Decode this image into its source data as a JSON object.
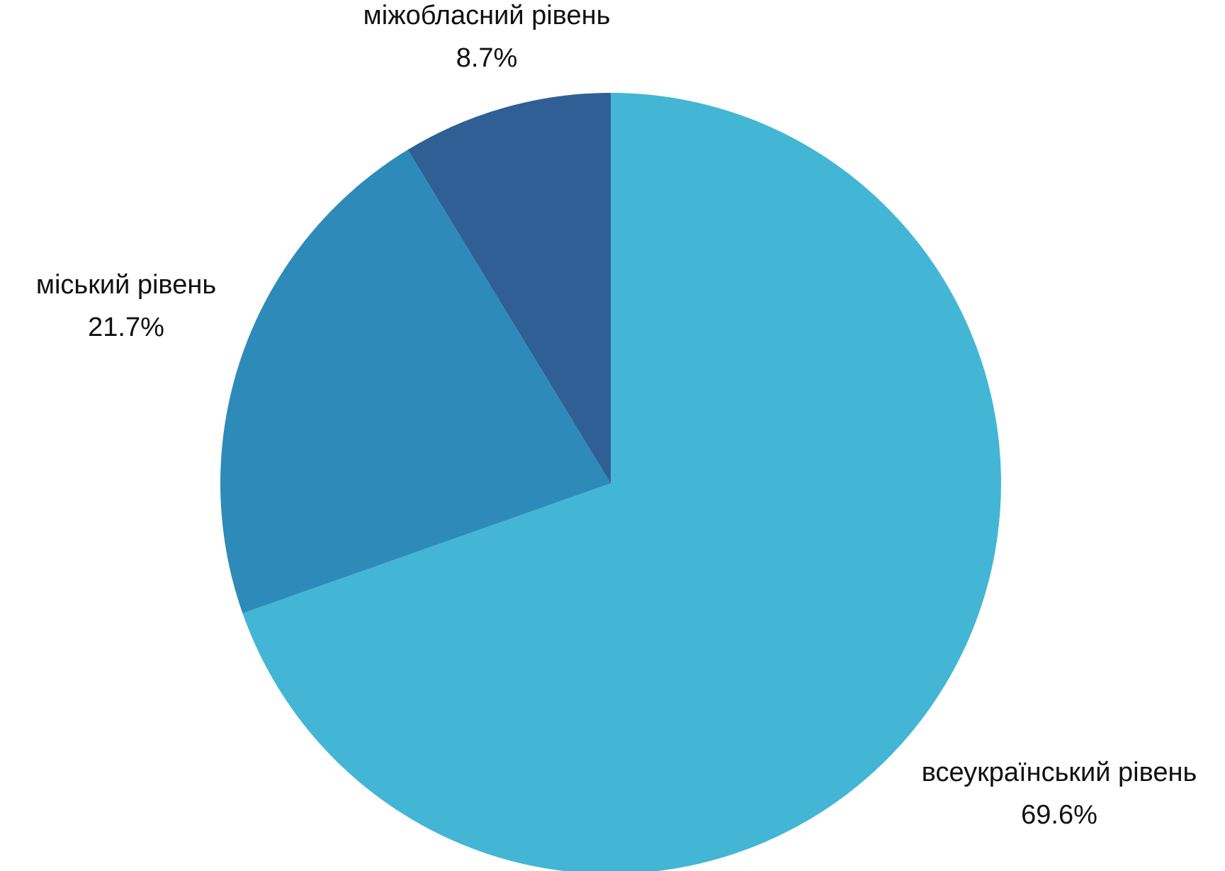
{
  "chart_data": {
    "type": "pie",
    "start_angle_deg": 0,
    "direction": "clockwise",
    "slices": [
      {
        "label": "всеукраїнський рівень",
        "value": 69.6,
        "value_label": "69.6%",
        "color": "#43B6D5"
      },
      {
        "label": "міський рівень",
        "value": 21.7,
        "value_label": "21.7%",
        "color": "#2E8BB9"
      },
      {
        "label": "міжобласний рівень",
        "value": 8.7,
        "value_label": "8.7%",
        "color": "#2F5F95"
      }
    ]
  }
}
